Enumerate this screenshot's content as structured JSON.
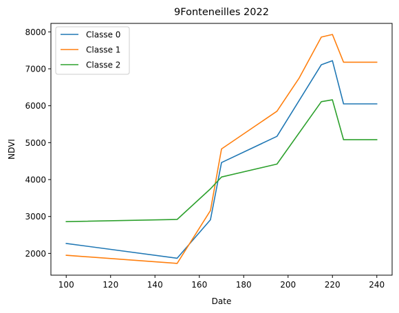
{
  "chart_data": {
    "type": "line",
    "title": "9Fonteneilles 2022",
    "xlabel": "Date",
    "ylabel": "NDVI",
    "xlim": [
      93.1,
      246.9
    ],
    "ylim": [
      1411,
      8230
    ],
    "xticks": [
      100,
      120,
      140,
      160,
      180,
      200,
      220,
      240
    ],
    "yticks": [
      2000,
      3000,
      4000,
      5000,
      6000,
      7000,
      8000
    ],
    "grid": false,
    "legend_position": "top-left",
    "series": [
      {
        "name": "Classe 0",
        "color": "#1f77b4",
        "x": [
          100,
          150,
          165,
          170,
          195,
          215,
          220,
          225,
          240
        ],
        "y": [
          2270,
          1870,
          2910,
          4460,
          5170,
          7110,
          7220,
          6050,
          6050
        ]
      },
      {
        "name": "Classe 1",
        "color": "#ff7f0e",
        "x": [
          100,
          150,
          165,
          170,
          195,
          205,
          215,
          220,
          225,
          240
        ],
        "y": [
          1950,
          1730,
          3160,
          4830,
          5850,
          6750,
          7860,
          7930,
          7180,
          7180
        ]
      },
      {
        "name": "Classe 2",
        "color": "#2ca02c",
        "x": [
          100,
          150,
          165,
          170,
          195,
          215,
          220,
          225,
          240
        ],
        "y": [
          2860,
          2920,
          3750,
          4070,
          4420,
          6110,
          6160,
          5080,
          5080
        ]
      }
    ]
  }
}
